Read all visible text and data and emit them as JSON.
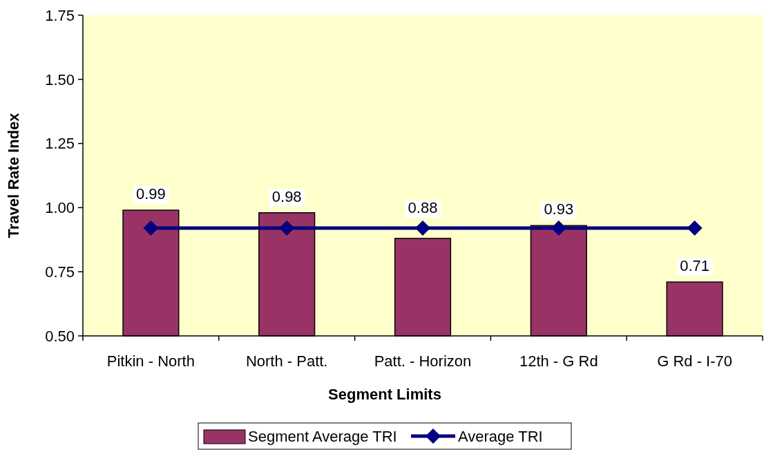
{
  "chart_data": {
    "type": "bar",
    "xlabel": "Segment Limits",
    "ylabel": "Travel Rate Index",
    "categories": [
      "Pitkin - North",
      "North - Patt.",
      "Patt. - Horizon",
      "12th - G Rd",
      "G Rd - I-70"
    ],
    "series": [
      {
        "name": "Segment Average TRI",
        "color": "#993366",
        "values": [
          0.99,
          0.98,
          0.88,
          0.93,
          0.71
        ],
        "value_labels": [
          "0.99",
          "0.98",
          "0.88",
          "0.93",
          "0.71"
        ]
      },
      {
        "name": "Average TRI",
        "type": "line",
        "color": "#000080",
        "marker": "diamond",
        "values": [
          0.92,
          0.92,
          0.92,
          0.92,
          0.92
        ]
      }
    ],
    "ylim": [
      0.5,
      1.75
    ],
    "yticks": [
      {
        "value": 0.5,
        "label": "0.50"
      },
      {
        "value": 0.75,
        "label": "0.75"
      },
      {
        "value": 1,
        "label": "1.00"
      },
      {
        "value": 1.25,
        "label": "1.25"
      },
      {
        "value": 1.5,
        "label": "1.50"
      },
      {
        "value": 1.75,
        "label": "1.75"
      }
    ],
    "grid": false,
    "legend": "bottom"
  }
}
